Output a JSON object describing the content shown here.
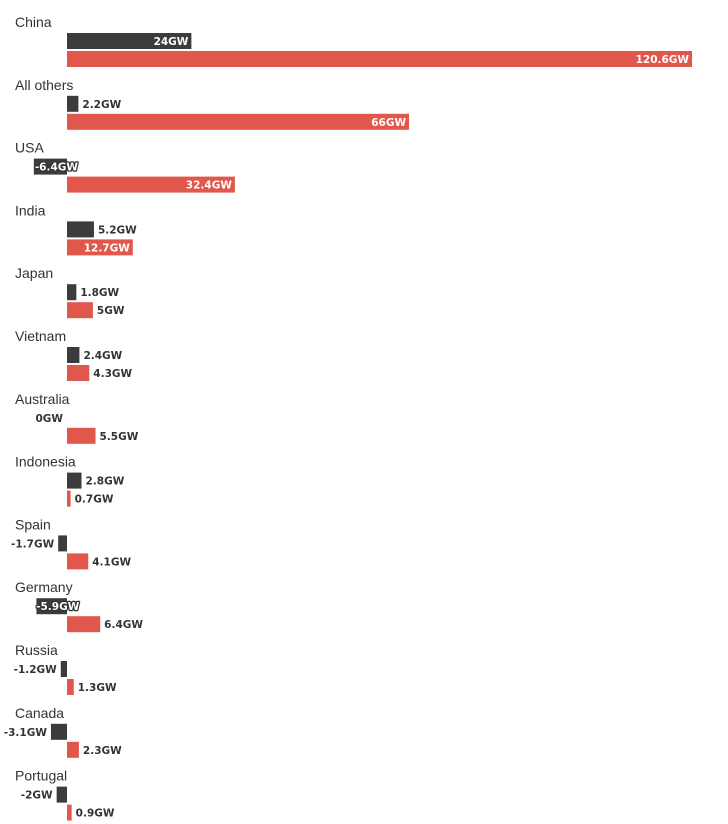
{
  "chart_data": {
    "type": "bar",
    "orientation": "horizontal",
    "unit": "GW",
    "categories": [
      "China",
      "All others",
      "USA",
      "India",
      "Japan",
      "Vietnam",
      "Australia",
      "Indonesia",
      "Spain",
      "Germany",
      "Russia",
      "Canada",
      "Portugal"
    ],
    "series": [
      {
        "name": "dark",
        "color": "#3c3c3c",
        "values": [
          24,
          2.2,
          -6.4,
          5.2,
          1.8,
          2.4,
          0,
          2.8,
          -1.7,
          -5.9,
          -1.2,
          -3.1,
          -2
        ],
        "labels": [
          "24GW",
          "2.2GW",
          "-6.4GW",
          "5.2GW",
          "1.8GW",
          "2.4GW",
          "0GW",
          "2.8GW",
          "-1.7GW",
          "-5.9GW",
          "-1.2GW",
          "-3.1GW",
          "-2GW"
        ]
      },
      {
        "name": "red",
        "color": "#e2574c",
        "values": [
          120.6,
          66,
          32.4,
          12.7,
          5,
          4.3,
          5.5,
          0.7,
          4.1,
          6.4,
          1.3,
          2.3,
          0.9
        ],
        "labels": [
          "120.6GW",
          "66GW",
          "32.4GW",
          "12.7GW",
          "5GW",
          "4.3GW",
          "5.5GW",
          "0.7GW",
          "4.1GW",
          "6.4GW",
          "1.3GW",
          "2.3GW",
          "0.9GW"
        ]
      }
    ],
    "title": "",
    "xlabel": "",
    "ylabel": "",
    "xlim": [
      -8,
      120.6
    ],
    "grid": false,
    "legend": "none"
  }
}
